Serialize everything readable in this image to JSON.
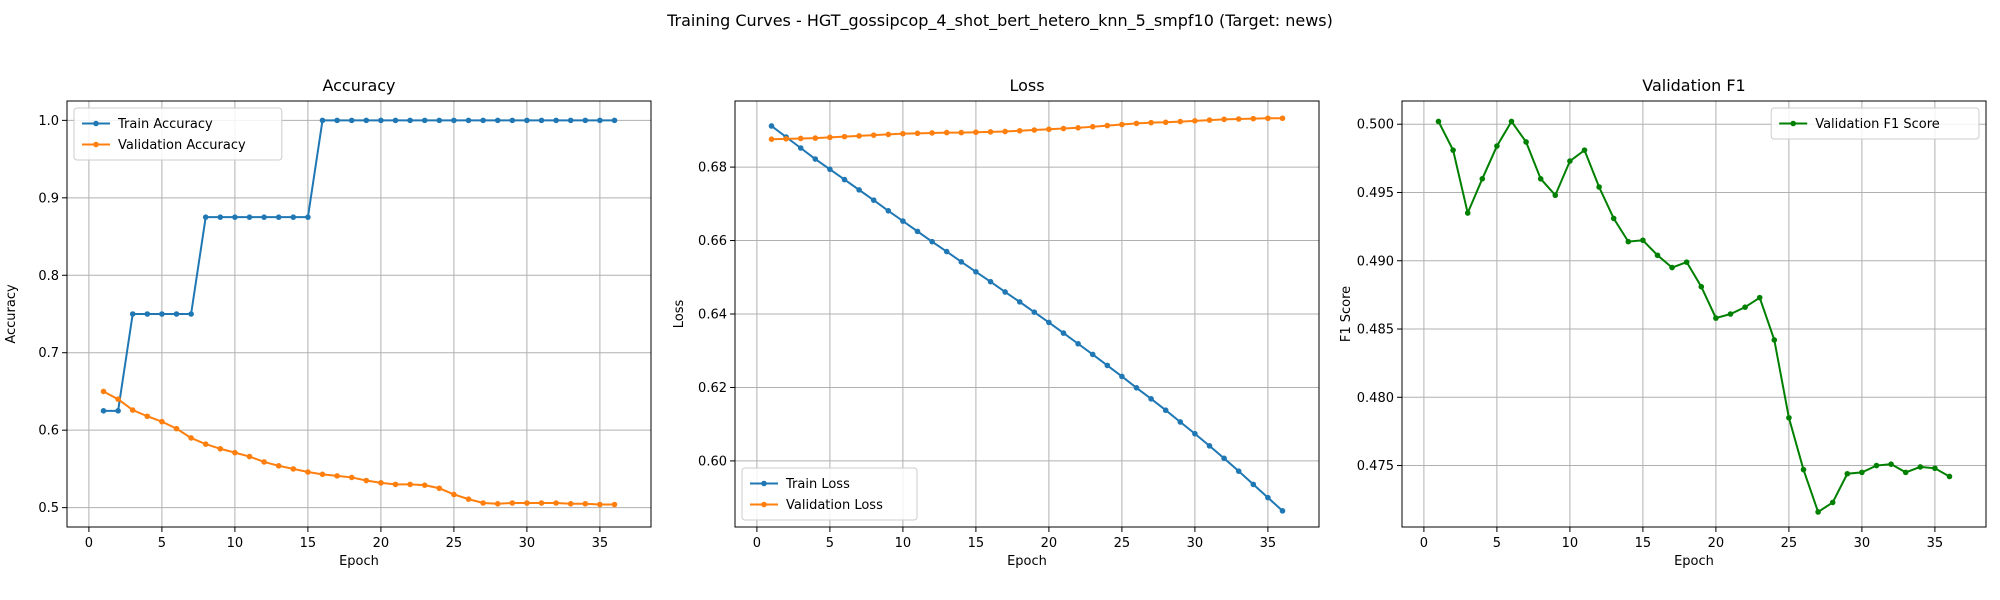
{
  "figure": {
    "suptitle": "Training Curves - HGT_gossipcop_4_shot_bert_hetero_knn_5_smpf10 (Target: news)"
  },
  "colors": {
    "train": "#1f77b4",
    "validation": "#ff7f0e",
    "f1": "#008000",
    "grid": "#b0b0b0"
  },
  "chart_data": [
    {
      "type": "line",
      "title": "Accuracy",
      "xlabel": "Epoch",
      "ylabel": "Accuracy",
      "xlim": [
        -1.5,
        38.5
      ],
      "ylim": [
        0.475,
        1.025
      ],
      "xticks": [
        0,
        5,
        10,
        15,
        20,
        25,
        30,
        35
      ],
      "yticks": [
        0.5,
        0.6,
        0.7,
        0.8,
        0.9,
        1.0
      ],
      "ytick_labels": [
        "0.5",
        "0.6",
        "0.7",
        "0.8",
        "0.9",
        "1.0"
      ],
      "grid": true,
      "legend": "top-left",
      "x": [
        1,
        2,
        3,
        4,
        5,
        6,
        7,
        8,
        9,
        10,
        11,
        12,
        13,
        14,
        15,
        16,
        17,
        18,
        19,
        20,
        21,
        22,
        23,
        24,
        25,
        26,
        27,
        28,
        29,
        30,
        31,
        32,
        33,
        34,
        35,
        36
      ],
      "series": [
        {
          "name": "Train Accuracy",
          "color": "train",
          "values": [
            0.625,
            0.625,
            0.75,
            0.75,
            0.75,
            0.75,
            0.75,
            0.875,
            0.875,
            0.875,
            0.875,
            0.875,
            0.875,
            0.875,
            0.875,
            1.0,
            1.0,
            1.0,
            1.0,
            1.0,
            1.0,
            1.0,
            1.0,
            1.0,
            1.0,
            1.0,
            1.0,
            1.0,
            1.0,
            1.0,
            1.0,
            1.0,
            1.0,
            1.0,
            1.0,
            1.0
          ]
        },
        {
          "name": "Validation Accuracy",
          "color": "validation",
          "values": [
            0.65,
            0.64,
            0.626,
            0.618,
            0.611,
            0.602,
            0.59,
            0.582,
            0.576,
            0.571,
            0.566,
            0.559,
            0.554,
            0.55,
            0.546,
            0.543,
            0.541,
            0.539,
            0.535,
            0.532,
            0.53,
            0.53,
            0.529,
            0.525,
            0.517,
            0.511,
            0.506,
            0.505,
            0.506,
            0.506,
            0.506,
            0.506,
            0.505,
            0.505,
            0.504,
            0.504
          ]
        }
      ]
    },
    {
      "type": "line",
      "title": "Loss",
      "xlabel": "Epoch",
      "ylabel": "Loss",
      "xlim": [
        -1.5,
        38.5
      ],
      "ylim": [
        0.582,
        0.698
      ],
      "xticks": [
        0,
        5,
        10,
        15,
        20,
        25,
        30,
        35
      ],
      "yticks": [
        0.6,
        0.62,
        0.64,
        0.66,
        0.68
      ],
      "ytick_labels": [
        "0.60",
        "0.62",
        "0.64",
        "0.66",
        "0.68"
      ],
      "grid": true,
      "legend": "bottom-left",
      "x": [
        1,
        2,
        3,
        4,
        5,
        6,
        7,
        8,
        9,
        10,
        11,
        12,
        13,
        14,
        15,
        16,
        17,
        18,
        19,
        20,
        21,
        22,
        23,
        24,
        25,
        26,
        27,
        28,
        29,
        30,
        31,
        32,
        33,
        34,
        35,
        36
      ],
      "series": [
        {
          "name": "Train Loss",
          "color": "train",
          "values": [
            0.6912,
            0.6882,
            0.6852,
            0.6822,
            0.6794,
            0.6766,
            0.6738,
            0.671,
            0.6681,
            0.6653,
            0.6625,
            0.6597,
            0.657,
            0.6542,
            0.6515,
            0.6488,
            0.646,
            0.6433,
            0.6405,
            0.6377,
            0.6348,
            0.6319,
            0.629,
            0.626,
            0.623,
            0.6199,
            0.6169,
            0.6138,
            0.6106,
            0.6074,
            0.6041,
            0.6007,
            0.5972,
            0.5936,
            0.59,
            0.5864
          ]
        },
        {
          "name": "Validation Loss",
          "color": "validation",
          "values": [
            0.6876,
            0.6877,
            0.6878,
            0.6879,
            0.6881,
            0.6883,
            0.6885,
            0.6887,
            0.6889,
            0.6891,
            0.6892,
            0.6893,
            0.6894,
            0.6894,
            0.6895,
            0.6896,
            0.6897,
            0.6899,
            0.6901,
            0.6903,
            0.6905,
            0.6907,
            0.691,
            0.6913,
            0.6916,
            0.6919,
            0.6921,
            0.6922,
            0.6924,
            0.6926,
            0.6928,
            0.693,
            0.6931,
            0.6932,
            0.6933,
            0.6933
          ]
        }
      ]
    },
    {
      "type": "line",
      "title": "Validation F1",
      "xlabel": "Epoch",
      "ylabel": "F1 Score",
      "xlim": [
        -1.5,
        38.5
      ],
      "ylim": [
        0.4705,
        0.5017
      ],
      "xticks": [
        0,
        5,
        10,
        15,
        20,
        25,
        30,
        35
      ],
      "yticks": [
        0.475,
        0.48,
        0.485,
        0.49,
        0.495,
        0.5
      ],
      "ytick_labels": [
        "0.475",
        "0.480",
        "0.485",
        "0.490",
        "0.495",
        "0.500"
      ],
      "grid": true,
      "legend": "top-right",
      "x": [
        1,
        2,
        3,
        4,
        5,
        6,
        7,
        8,
        9,
        10,
        11,
        12,
        13,
        14,
        15,
        16,
        17,
        18,
        19,
        20,
        21,
        22,
        23,
        24,
        25,
        26,
        27,
        28,
        29,
        30,
        31,
        32,
        33,
        34,
        35,
        36
      ],
      "series": [
        {
          "name": "Validation F1 Score",
          "color": "f1",
          "values": [
            0.5002,
            0.4981,
            0.4935,
            0.496,
            0.4984,
            0.5002,
            0.4987,
            0.496,
            0.4948,
            0.4973,
            0.4981,
            0.4954,
            0.4931,
            0.4914,
            0.4915,
            0.4904,
            0.4895,
            0.4899,
            0.4881,
            0.4858,
            0.4861,
            0.4866,
            0.4873,
            0.4842,
            0.4785,
            0.4747,
            0.4716,
            0.4723,
            0.4744,
            0.4745,
            0.475,
            0.4751,
            0.4745,
            0.4749,
            0.4748,
            0.4742
          ]
        }
      ]
    }
  ]
}
